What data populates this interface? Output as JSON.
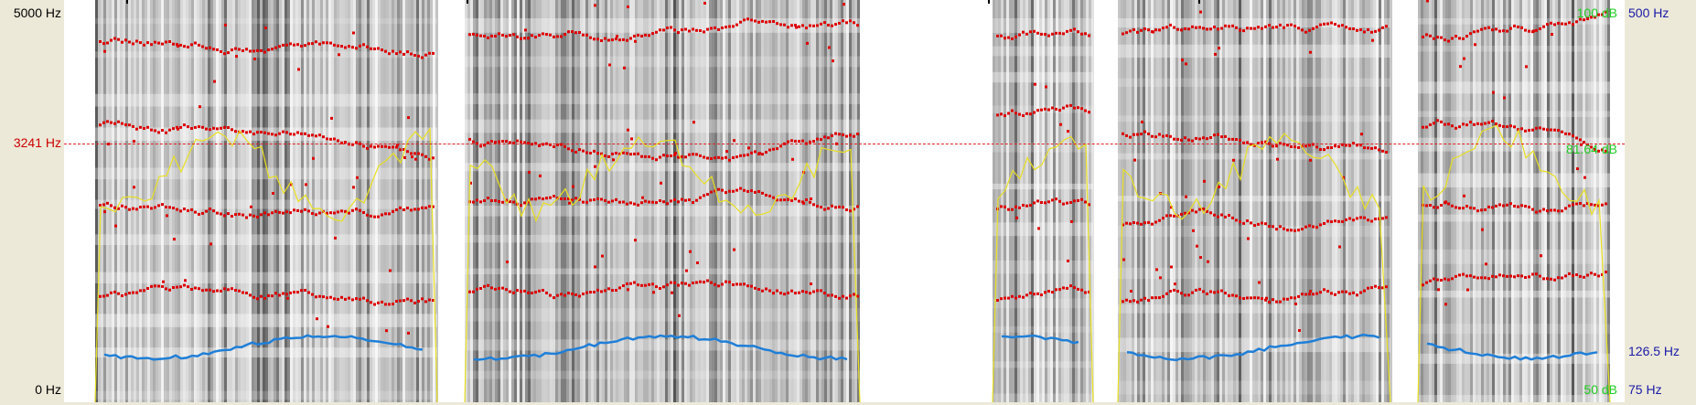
{
  "axes": {
    "left": {
      "top": "5000 Hz",
      "cursor": "3241 Hz",
      "bottom": "0 Hz"
    },
    "right": {
      "top": "500 Hz",
      "mid": "126.5 Hz",
      "bottom": "75 Hz"
    },
    "intensity": {
      "top": "100 dB",
      "cursor": "81.64 dB",
      "bottom": "50 dB"
    }
  },
  "colors": {
    "frequency_label": "#000000",
    "cursor": "#cc0000",
    "pitch_label": "#1a1aa6",
    "intensity_label": "#22cc22",
    "formant": "#dd0000",
    "intensity_curve": "#e8e020",
    "pitch_curve": "#1f7fd8"
  },
  "layers": [
    "spectrogram",
    "formants",
    "intensity",
    "pitch"
  ]
}
